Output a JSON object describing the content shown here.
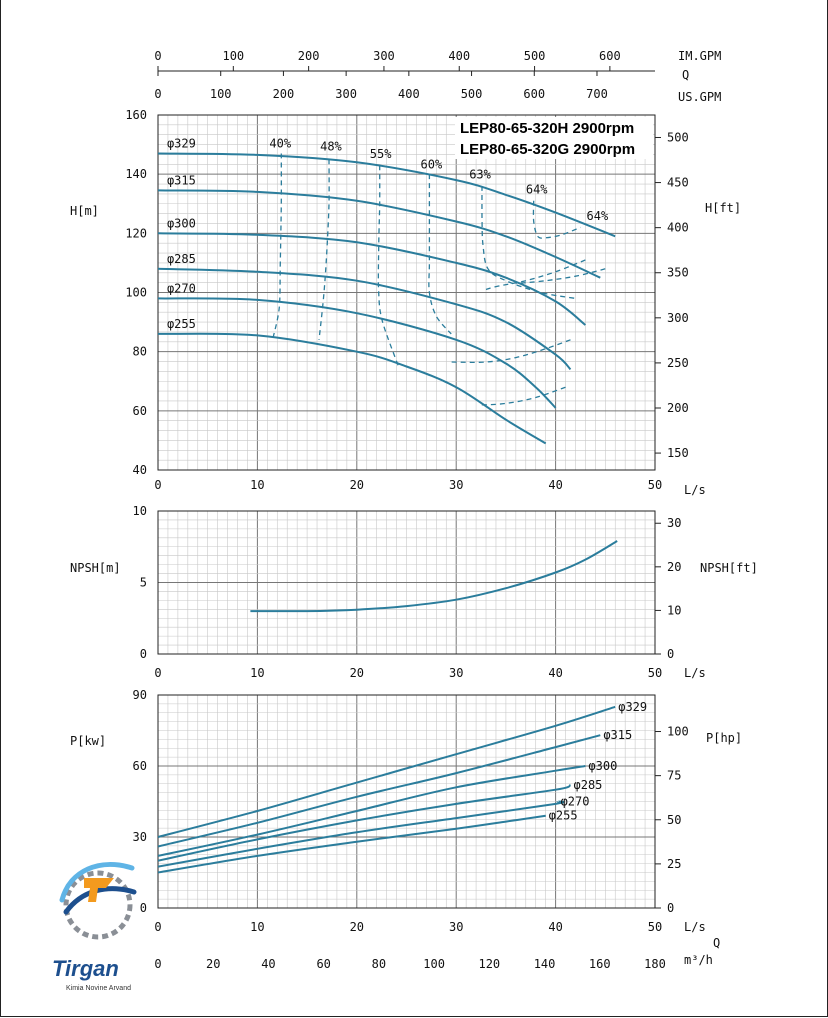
{
  "brand": {
    "name": "Tirgan",
    "tagline": "Kimia Novine Arvand",
    "colors": {
      "primary": "#1d4f8e",
      "accent": "#f39a1e",
      "light": "#5fb4e6"
    }
  },
  "colors": {
    "curve": "#2b7d9c",
    "grid_major": "#777777",
    "grid_minor": "#c8c8c8"
  },
  "top_axes": {
    "im_gpm": {
      "label": "IM.GPM",
      "ticks": [
        "0",
        "100",
        "200",
        "300",
        "400",
        "500",
        "600"
      ]
    },
    "q_label": "Q",
    "us_gpm": {
      "label": "US.GPM",
      "ticks": [
        "0",
        "100",
        "200",
        "300",
        "400",
        "500",
        "600",
        "700"
      ]
    }
  },
  "bottom_axis": {
    "label": "m³/h",
    "q_label": "Q",
    "ticks": [
      "0",
      "20",
      "40",
      "60",
      "80",
      "100",
      "120",
      "140",
      "160",
      "180"
    ]
  },
  "chart_data": [
    {
      "type": "line",
      "title": "LEP80-65-320H 2900rpm",
      "subtitle": "LEP80-65-320G 2900rpm",
      "xlabel": "L/s",
      "ylabel": "H[m]",
      "ylabel_right": "H[ft]",
      "xlim": [
        0,
        50
      ],
      "ylim": [
        40,
        160
      ],
      "xticks": [
        "0",
        "10",
        "20",
        "30",
        "40",
        "50"
      ],
      "yticks": [
        "40",
        "60",
        "80",
        "100",
        "120",
        "140",
        "160"
      ],
      "yticks_right": [
        "150",
        "200",
        "250",
        "300",
        "350",
        "400",
        "450",
        "500"
      ],
      "grid": true,
      "series": [
        {
          "name": "φ329",
          "x": [
            0,
            10,
            20,
            30,
            35,
            40,
            46
          ],
          "y": [
            147,
            146.5,
            144,
            138,
            133,
            127,
            119
          ]
        },
        {
          "name": "φ315",
          "x": [
            0,
            10,
            20,
            30,
            35,
            40,
            44.5
          ],
          "y": [
            134.5,
            134,
            131,
            124,
            119,
            112,
            105
          ]
        },
        {
          "name": "φ300",
          "x": [
            0,
            10,
            20,
            30,
            35,
            40,
            43
          ],
          "y": [
            120,
            119.5,
            117,
            110,
            105,
            97,
            89
          ]
        },
        {
          "name": "φ285",
          "x": [
            0,
            10,
            20,
            30,
            35,
            40,
            41.5
          ],
          "y": [
            108,
            107,
            104,
            96,
            90,
            79,
            74
          ]
        },
        {
          "name": "φ270",
          "x": [
            0,
            10,
            20,
            30,
            35,
            38,
            40
          ],
          "y": [
            98,
            97.5,
            93,
            84,
            76,
            68,
            61
          ]
        },
        {
          "name": "φ255",
          "x": [
            0,
            10,
            20,
            25,
            30,
            35,
            39
          ],
          "y": [
            86,
            85.5,
            80,
            75,
            68,
            57,
            49
          ]
        }
      ],
      "efficiency_labels": [
        {
          "name": "40%",
          "x": 12.3,
          "y": 149
        },
        {
          "name": "48%",
          "x": 17.4,
          "y": 148
        },
        {
          "name": "55%",
          "x": 22.4,
          "y": 145.5
        },
        {
          "name": "60%",
          "x": 27.5,
          "y": 142
        },
        {
          "name": "63%",
          "x": 32.4,
          "y": 138.5
        },
        {
          "name": "64%",
          "x": 38.1,
          "y": 133.5
        },
        {
          "name": "64%",
          "x": 44.2,
          "y": 124.5
        }
      ],
      "efficiency_contours": [
        {
          "name": "40%",
          "x": [
            12.4,
            12.4,
            12.3,
            12.2,
            11.6
          ],
          "y": [
            147,
            130,
            110,
            95,
            85
          ]
        },
        {
          "name": "48%",
          "x": [
            17.2,
            17.2,
            17.0,
            16.7,
            16.2
          ],
          "y": [
            145,
            130,
            115,
            100,
            84
          ]
        },
        {
          "name": "55%",
          "x": [
            22.3,
            22.3,
            22.2,
            22.2,
            22.6,
            24.2
          ],
          "y": [
            143,
            130,
            115,
            100,
            90,
            75
          ]
        },
        {
          "name": "60%",
          "x": [
            27.3,
            27.3,
            27.3,
            27.3,
            28.0,
            29.5
          ],
          "y": [
            140,
            125,
            110,
            100,
            92,
            86
          ]
        },
        {
          "name": "63%",
          "x": [
            32.6,
            32.6,
            32.7,
            33.2,
            35,
            38.5,
            42
          ],
          "y": [
            136,
            125,
            116,
            108,
            104,
            100,
            98
          ]
        },
        {
          "name": "64%",
          "x": [
            37.8,
            37.8,
            38.2,
            39.0,
            40.6,
            42.5
          ],
          "y": [
            131,
            124,
            119,
            118.5,
            119.5,
            122
          ]
        },
        {
          "name": "63%",
          "x": [
            43,
            40,
            37,
            34,
            33
          ],
          "y": [
            111,
            107,
            104,
            102,
            101
          ]
        },
        {
          "name": "63%",
          "x": [
            45,
            42,
            39,
            36
          ],
          "y": [
            108,
            105.5,
            104,
            103
          ]
        },
        {
          "name": "60%",
          "x": [
            41.5,
            39,
            36,
            33,
            29.5
          ],
          "y": [
            84,
            81,
            78,
            76.5,
            76.5
          ]
        },
        {
          "name": "55%",
          "x": [
            41,
            38,
            35,
            32.5
          ],
          "y": [
            68,
            64.5,
            62.5,
            62
          ]
        }
      ]
    },
    {
      "type": "line",
      "xlabel": "L/s",
      "ylabel": "NPSH[m]",
      "ylabel_right": "NPSH[ft]",
      "xlim": [
        0,
        50
      ],
      "ylim": [
        0,
        10
      ],
      "xticks": [
        "0",
        "10",
        "20",
        "30",
        "40",
        "50"
      ],
      "yticks": [
        "0",
        "5",
        "10"
      ],
      "yticks_right": [
        "0",
        "10",
        "20",
        "30"
      ],
      "grid": true,
      "series": [
        {
          "x": [
            9.3,
            15,
            20,
            25,
            30,
            35,
            40,
            43,
            46.2
          ],
          "y": [
            3,
            3,
            3.1,
            3.35,
            3.8,
            4.6,
            5.7,
            6.6,
            7.9
          ]
        }
      ]
    },
    {
      "type": "line",
      "xlabel": "L/s",
      "ylabel": "P[kw]",
      "ylabel_right": "P[hp]",
      "xlim": [
        0,
        50
      ],
      "ylim": [
        0,
        90
      ],
      "xticks": [
        "0",
        "10",
        "20",
        "30",
        "40",
        "50"
      ],
      "yticks": [
        "0",
        "30",
        "60",
        "90"
      ],
      "yticks_right": [
        "0",
        "25",
        "50",
        "75",
        "100"
      ],
      "grid": true,
      "series": [
        {
          "name": "φ329",
          "x": [
            0,
            10,
            20,
            30,
            40,
            46
          ],
          "y": [
            30,
            41,
            53,
            65,
            77,
            85
          ]
        },
        {
          "name": "φ315",
          "x": [
            0,
            10,
            20,
            30,
            40,
            44.5
          ],
          "y": [
            26,
            36,
            47,
            57,
            68,
            73
          ]
        },
        {
          "name": "φ300",
          "x": [
            0,
            10,
            20,
            30,
            40,
            43
          ],
          "y": [
            22,
            31,
            41,
            51,
            58,
            60
          ]
        },
        {
          "name": "φ285",
          "x": [
            0,
            10,
            20,
            30,
            40,
            41.5
          ],
          "y": [
            20,
            29,
            37,
            44,
            50,
            52
          ]
        },
        {
          "name": "φ270",
          "x": [
            0,
            10,
            20,
            30,
            40,
            40.2
          ],
          "y": [
            17.5,
            25,
            32,
            38,
            44,
            45
          ]
        },
        {
          "name": "φ255",
          "x": [
            0,
            10,
            20,
            30,
            35,
            39
          ],
          "y": [
            15,
            22,
            28,
            33.5,
            36.5,
            39
          ]
        }
      ]
    }
  ]
}
